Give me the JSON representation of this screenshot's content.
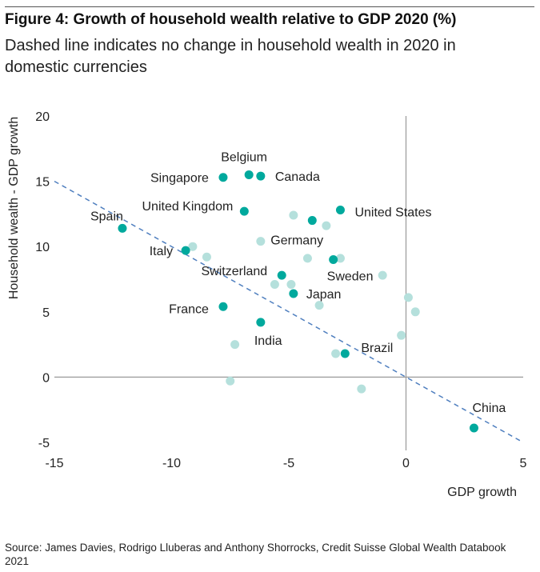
{
  "header": {
    "title": "Figure 4: Growth of household wealth relative to GDP 2020 (%)",
    "subtitle": "Dashed line indicates no change in household wealth in 2020 in domestic currencies"
  },
  "footer": {
    "source": "Source: James Davies, Rodrigo Lluberas and Anthony Shorrocks, Credit Suisse Global Wealth Databook 2021"
  },
  "colors": {
    "highlight": "#00a99d",
    "other": "#b5e0dc",
    "line": "#4f7fbf"
  },
  "chart_data": {
    "type": "scatter",
    "xlabel": "GDP growth",
    "ylabel": "Household wealth - GDP growth",
    "xlim": [
      -15,
      5
    ],
    "ylim": [
      -5,
      20
    ],
    "xticks": [
      -15,
      -10,
      -5,
      0,
      5
    ],
    "yticks": [
      -5,
      0,
      5,
      10,
      15,
      20
    ],
    "grid": false,
    "reference_line": {
      "style": "dashed",
      "points": [
        [
          -15,
          15
        ],
        [
          5,
          -5
        ]
      ]
    },
    "labeled_points": [
      {
        "label": "Belgium",
        "x": -6.7,
        "y": 15.5
      },
      {
        "label": "Singapore",
        "x": -7.8,
        "y": 15.3
      },
      {
        "label": "Canada",
        "x": -6.2,
        "y": 15.4
      },
      {
        "label": "United Kingdom",
        "x": -6.9,
        "y": 12.7
      },
      {
        "label": "United States",
        "x": -2.8,
        "y": 12.8
      },
      {
        "label": "Spain",
        "x": -12.1,
        "y": 11.4
      },
      {
        "label": "Germany",
        "x": -4.0,
        "y": 12.0
      },
      {
        "label": "Italy",
        "x": -9.4,
        "y": 9.7
      },
      {
        "label": "Sweden",
        "x": -3.1,
        "y": 9.0
      },
      {
        "label": "Switzerland",
        "x": -5.3,
        "y": 7.8
      },
      {
        "label": "Japan",
        "x": -4.8,
        "y": 6.4
      },
      {
        "label": "France",
        "x": -7.8,
        "y": 5.4
      },
      {
        "label": "India",
        "x": -6.2,
        "y": 4.2
      },
      {
        "label": "Brazil",
        "x": -2.6,
        "y": 1.8
      },
      {
        "label": "China",
        "x": 2.9,
        "y": -3.9
      }
    ],
    "other_points": [
      [
        -4.8,
        12.4
      ],
      [
        -3.4,
        11.6
      ],
      [
        -6.2,
        10.4
      ],
      [
        -9.1,
        10.0
      ],
      [
        -8.5,
        9.2
      ],
      [
        -4.2,
        9.1
      ],
      [
        -2.8,
        9.1
      ],
      [
        -1.0,
        7.8
      ],
      [
        -5.6,
        7.1
      ],
      [
        -4.9,
        7.1
      ],
      [
        -3.7,
        5.5
      ],
      [
        0.1,
        6.1
      ],
      [
        0.4,
        5.0
      ],
      [
        -0.2,
        3.2
      ],
      [
        -7.3,
        2.5
      ],
      [
        -3.0,
        1.8
      ],
      [
        -7.5,
        -0.3
      ],
      [
        -1.9,
        -0.9
      ]
    ]
  }
}
